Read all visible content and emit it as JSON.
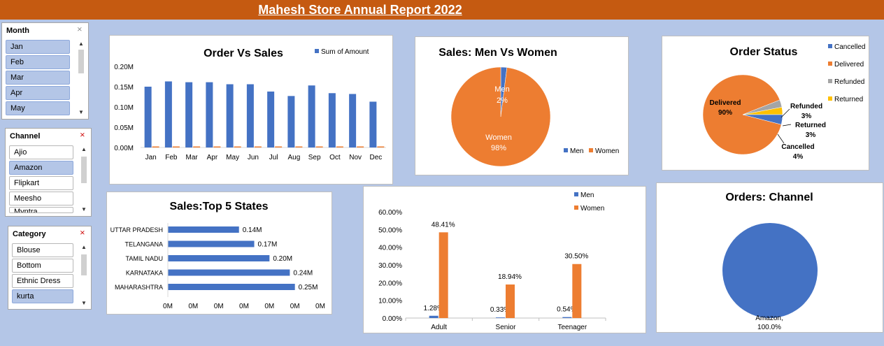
{
  "header": {
    "title": "Mahesh Store Annual Report 2022"
  },
  "slicers": {
    "month": {
      "title": "Month",
      "items": [
        {
          "label": "Jan",
          "selected": true
        },
        {
          "label": "Feb",
          "selected": true
        },
        {
          "label": "Mar",
          "selected": true
        },
        {
          "label": "Apr",
          "selected": true
        },
        {
          "label": "May",
          "selected": true
        }
      ]
    },
    "channel": {
      "title": "Channel",
      "items": [
        {
          "label": "Ajio",
          "selected": false
        },
        {
          "label": "Amazon",
          "selected": true
        },
        {
          "label": "Flipkart",
          "selected": false
        },
        {
          "label": "Meesho",
          "selected": false
        },
        {
          "label": "Myntra",
          "selected": false
        }
      ]
    },
    "category": {
      "title": "Category",
      "items": [
        {
          "label": "Blouse",
          "selected": false
        },
        {
          "label": "Bottom",
          "selected": false
        },
        {
          "label": "Ethnic Dress",
          "selected": false
        },
        {
          "label": "kurta",
          "selected": true
        }
      ]
    }
  },
  "icons": {
    "filter": "clear-filter-icon",
    "up": "scroll-up-icon",
    "down": "scroll-down-icon"
  },
  "colors": {
    "blue": "#4472c4",
    "orange": "#ed7d31",
    "gray": "#a5a5a5",
    "yellow": "#ffc000",
    "header": "#c55a11",
    "background": "#b4c6e7"
  },
  "chart_data": [
    {
      "id": "order_sales",
      "type": "bar",
      "title": "Order Vs Sales",
      "categories": [
        "Jan",
        "Feb",
        "Mar",
        "Apr",
        "May",
        "Jun",
        "Jul",
        "Aug",
        "Sep",
        "Oct",
        "Nov",
        "Dec"
      ],
      "series": [
        {
          "name": "Sum of Amount",
          "values": [
            0.15,
            0.163,
            0.161,
            0.161,
            0.156,
            0.156,
            0.138,
            0.127,
            0.153,
            0.134,
            0.132,
            0.113
          ]
        },
        {
          "name": "",
          "values": [
            0.001,
            0.001,
            0.001,
            0.001,
            0.001,
            0.001,
            0.001,
            0.001,
            0.001,
            0.001,
            0.001,
            0.001
          ]
        }
      ],
      "yticks": [
        "0.00M",
        "0.05M",
        "0.10M",
        "0.15M",
        "0.20M"
      ],
      "ylim": [
        0,
        0.2
      ],
      "legend": "top-right"
    },
    {
      "id": "men_women",
      "type": "pie",
      "title": "Sales: Men Vs Women",
      "slices": [
        {
          "name": "Men",
          "value": 2,
          "label": "Men",
          "pct": "2%"
        },
        {
          "name": "Women",
          "value": 98,
          "label": "Women",
          "pct": "98%"
        }
      ],
      "legend": "bottom-right"
    },
    {
      "id": "order_status",
      "type": "pie",
      "title": "Order Status",
      "slices": [
        {
          "name": "Cancelled",
          "value": 4,
          "label": "Cancelled",
          "pct": "4%"
        },
        {
          "name": "Delivered",
          "value": 90,
          "label": "Delivered",
          "pct": "90%"
        },
        {
          "name": "Refunded",
          "value": 3,
          "label": "Refunded",
          "pct": "3%"
        },
        {
          "name": "Returned",
          "value": 3,
          "label": "Returned",
          "pct": "3%"
        }
      ],
      "legend": "right"
    },
    {
      "id": "top_states",
      "type": "bar",
      "orientation": "horizontal",
      "title": "Sales:Top 5 States",
      "categories": [
        "UTTAR PRADESH",
        "TELANGANA",
        "TAMIL NADU",
        "KARNATAKA",
        "MAHARASHTRA"
      ],
      "values": [
        0.14,
        0.17,
        0.2,
        0.24,
        0.25
      ],
      "labels": [
        "0.14M",
        "0.17M",
        "0.20M",
        "0.24M",
        "0.25M"
      ],
      "xticks": [
        "0M",
        "0M",
        "0M",
        "0M",
        "0M",
        "0M",
        "0M"
      ],
      "xlim": [
        0,
        0.3
      ]
    },
    {
      "id": "age_gender",
      "type": "bar",
      "title": "",
      "categories": [
        "Adult",
        "Senior",
        "Teenager"
      ],
      "series": [
        {
          "name": "Men",
          "values": [
            1.28,
            0.33,
            0.54
          ],
          "labels": [
            "1.28%",
            "0.33%",
            "0.54%"
          ]
        },
        {
          "name": "Women",
          "values": [
            48.41,
            18.94,
            30.5
          ],
          "labels": [
            "48.41%",
            "18.94%",
            "30.50%"
          ]
        }
      ],
      "yticks": [
        "0.00%",
        "10.00%",
        "20.00%",
        "30.00%",
        "40.00%",
        "50.00%",
        "60.00%"
      ],
      "ylim": [
        0,
        60
      ],
      "legend": "top-right"
    },
    {
      "id": "orders_channel",
      "type": "pie",
      "title": "Orders: Channel",
      "slices": [
        {
          "name": "Amazon",
          "value": 100,
          "label": "Amazon,",
          "pct": "100.0%"
        }
      ]
    }
  ]
}
